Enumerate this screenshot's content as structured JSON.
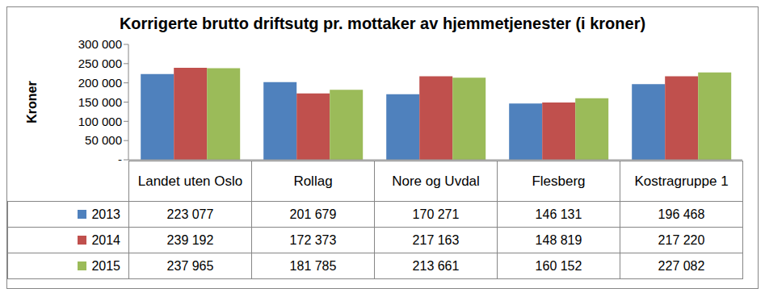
{
  "chart_data": {
    "type": "bar",
    "title": "Korrigerte brutto driftsutg pr. mottaker av hjemmetjenester (i kroner)",
    "y_label": "Kroner",
    "categories": [
      "Landet uten Oslo",
      "Rollag",
      "Nore og Uvdal",
      "Flesberg",
      "Kostragruppe 1"
    ],
    "series": [
      {
        "name": "2013",
        "color": "#4f81bd",
        "values": [
          223077,
          201679,
          170271,
          146131,
          196468
        ],
        "value_labels": [
          "223 077",
          "201 679",
          "170 271",
          "146 131",
          "196 468"
        ]
      },
      {
        "name": "2014",
        "color": "#c0504d",
        "values": [
          239192,
          172373,
          217163,
          148819,
          217220
        ],
        "value_labels": [
          "239 192",
          "172 373",
          "217 163",
          "148 819",
          "217 220"
        ]
      },
      {
        "name": "2015",
        "color": "#9bbb59",
        "values": [
          237965,
          181785,
          213661,
          160152,
          227082
        ],
        "value_labels": [
          "237 965",
          "181 785",
          "213 661",
          "160 152",
          "227 082"
        ]
      }
    ],
    "ylim": [
      0,
      300000
    ],
    "yticks": [
      {
        "value": 0,
        "label": "-"
      },
      {
        "value": 50000,
        "label": "50 000"
      },
      {
        "value": 100000,
        "label": "100 000"
      },
      {
        "value": 150000,
        "label": "150 000"
      },
      {
        "value": 200000,
        "label": "200 000"
      },
      {
        "value": 250000,
        "label": "250 000"
      },
      {
        "value": 300000,
        "label": "300 000"
      }
    ],
    "grid": false
  }
}
